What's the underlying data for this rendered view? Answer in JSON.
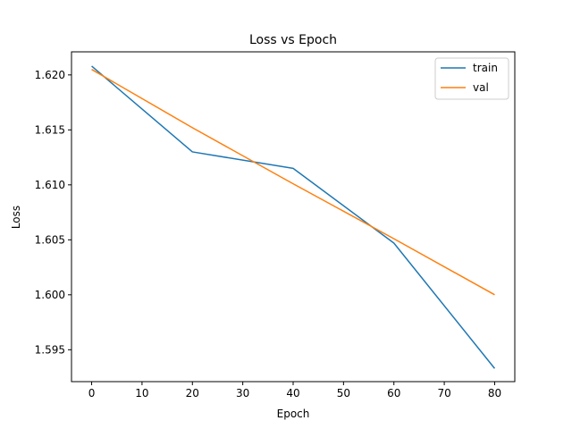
{
  "chart_data": {
    "type": "line",
    "title": "Loss vs Epoch",
    "xlabel": "Epoch",
    "ylabel": "Loss",
    "xlim": [
      -4,
      84
    ],
    "ylim": [
      1.5921,
      1.6221
    ],
    "xticks": [
      0,
      10,
      20,
      30,
      40,
      50,
      60,
      70,
      80
    ],
    "yticks": [
      1.595,
      1.6,
      1.605,
      1.61,
      1.615,
      1.62
    ],
    "ytick_labels": [
      "1.595",
      "1.600",
      "1.605",
      "1.610",
      "1.615",
      "1.620"
    ],
    "grid": false,
    "legend_position": "top-right",
    "series": [
      {
        "name": "train",
        "color": "#1f77b4",
        "x": [
          0,
          20,
          40,
          60,
          80
        ],
        "y": [
          1.6208,
          1.613,
          1.6115,
          1.6047,
          1.5933
        ]
      },
      {
        "name": "val",
        "color": "#ff7f0e",
        "x": [
          0,
          20,
          40,
          60,
          80
        ],
        "y": [
          1.6205,
          1.6152,
          1.6101,
          1.6051,
          1.6
        ]
      }
    ]
  }
}
